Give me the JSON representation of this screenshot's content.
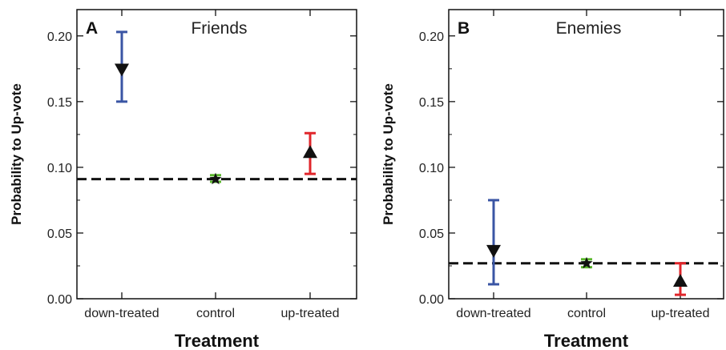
{
  "chart_data": [
    {
      "type": "scatter",
      "panel_label": "A",
      "title": "Friends",
      "xlabel": "Treatment",
      "ylabel": "Probability to Up-vote",
      "categories": [
        "down-treated",
        "control",
        "up-treated"
      ],
      "ylim": [
        0,
        0.22
      ],
      "yticks": [
        "0.00",
        "0.05",
        "0.10",
        "0.15",
        "0.20"
      ],
      "baseline": 0.091,
      "points": [
        {
          "category": "down-treated",
          "value": 0.174,
          "low": 0.15,
          "high": 0.203,
          "marker": "triangle-down",
          "error_color": "#3a55a4"
        },
        {
          "category": "control",
          "value": 0.091,
          "low": 0.089,
          "high": 0.094,
          "marker": "star",
          "error_color": "#5cb82e"
        },
        {
          "category": "up-treated",
          "value": 0.112,
          "low": 0.095,
          "high": 0.126,
          "marker": "triangle-up",
          "error_color": "#e0262b"
        }
      ]
    },
    {
      "type": "scatter",
      "panel_label": "B",
      "title": "Enemies",
      "xlabel": "Treatment",
      "ylabel": "Probability to Up-vote",
      "categories": [
        "down-treated",
        "control",
        "up-treated"
      ],
      "ylim": [
        0,
        0.22
      ],
      "yticks": [
        "0.00",
        "0.05",
        "0.10",
        "0.15",
        "0.20"
      ],
      "baseline": 0.027,
      "points": [
        {
          "category": "down-treated",
          "value": 0.036,
          "low": 0.011,
          "high": 0.075,
          "marker": "triangle-down",
          "error_color": "#3a55a4"
        },
        {
          "category": "control",
          "value": 0.027,
          "low": 0.024,
          "high": 0.03,
          "marker": "star",
          "error_color": "#5cb82e"
        },
        {
          "category": "up-treated",
          "value": 0.014,
          "low": 0.003,
          "high": 0.027,
          "marker": "triangle-up",
          "error_color": "#e0262b"
        }
      ]
    }
  ]
}
